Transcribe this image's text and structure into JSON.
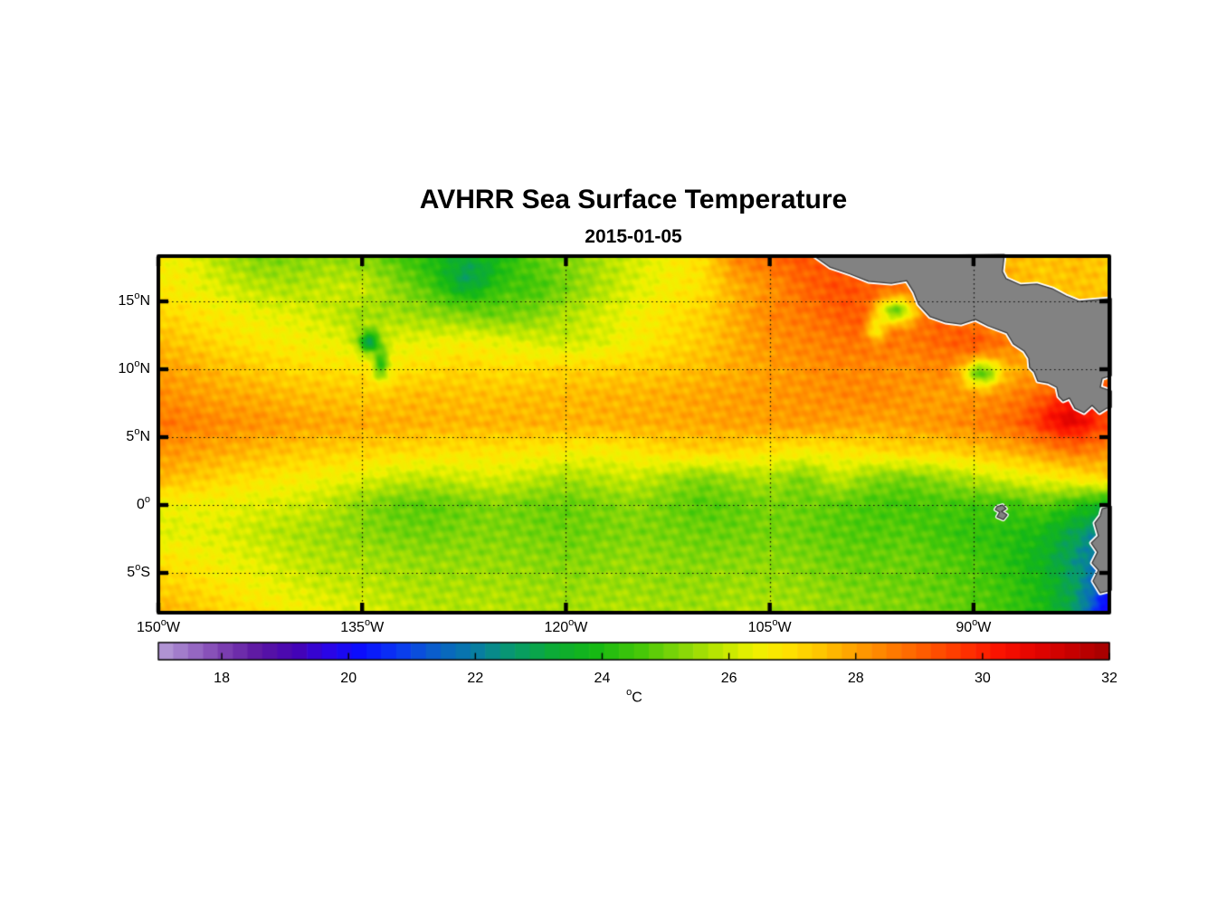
{
  "figure": {
    "title": "AVHRR Sea Surface Temperature",
    "subtitle": "2015-01-05",
    "background_color": "#ffffff",
    "frame_color": "#000000"
  },
  "map": {
    "deg_symbol": "o",
    "land_color": "#828282",
    "land_edge_color": "#3a3a3a",
    "coast_halo_color": "#ffffff",
    "grid_style": "dotted",
    "lat_ticks": [
      {
        "value": 15,
        "label": "15",
        "suffix": "N"
      },
      {
        "value": 10,
        "label": "10",
        "suffix": "N"
      },
      {
        "value": 5,
        "label": "5",
        "suffix": "N"
      },
      {
        "value": 0,
        "label": "0",
        "suffix": ""
      },
      {
        "value": -5,
        "label": "5",
        "suffix": "S"
      }
    ],
    "lon_ticks": [
      {
        "value": -150,
        "label": "150",
        "suffix": "W"
      },
      {
        "value": -135,
        "label": "135",
        "suffix": "W"
      },
      {
        "value": -120,
        "label": "120",
        "suffix": "W"
      },
      {
        "value": -105,
        "label": "105",
        "suffix": "W"
      },
      {
        "value": -90,
        "label": "90",
        "suffix": "W"
      }
    ]
  },
  "colorbar": {
    "min": 17,
    "max": 32,
    "steps": 64,
    "ticks": [
      18,
      20,
      22,
      24,
      26,
      28,
      30,
      32
    ],
    "deg_symbol": "o",
    "unit": "C",
    "stops": [
      [
        17.0,
        "#b79fd7"
      ],
      [
        17.5,
        "#9a70c6"
      ],
      [
        18.0,
        "#7e41b2"
      ],
      [
        18.6,
        "#5c16a2"
      ],
      [
        19.2,
        "#4503b6"
      ],
      [
        19.7,
        "#2a06e8"
      ],
      [
        20.2,
        "#0a0eff"
      ],
      [
        20.8,
        "#0a3af2"
      ],
      [
        21.4,
        "#0a62c8"
      ],
      [
        22.0,
        "#087da4"
      ],
      [
        22.6,
        "#089b6c"
      ],
      [
        23.2,
        "#0cab38"
      ],
      [
        23.9,
        "#16b914"
      ],
      [
        24.6,
        "#46c808"
      ],
      [
        25.3,
        "#8ad808"
      ],
      [
        25.9,
        "#c2e800"
      ],
      [
        26.4,
        "#eef200"
      ],
      [
        26.9,
        "#ffe400"
      ],
      [
        27.4,
        "#ffc800"
      ],
      [
        28.0,
        "#ffa000"
      ],
      [
        28.6,
        "#ff7a00"
      ],
      [
        29.2,
        "#ff5400"
      ],
      [
        29.8,
        "#ff2e00"
      ],
      [
        30.3,
        "#fa1000"
      ],
      [
        30.9,
        "#e10400"
      ],
      [
        31.5,
        "#c20000"
      ],
      [
        32.0,
        "#a30000"
      ]
    ]
  },
  "chart_data": {
    "type": "heatmap",
    "title": "AVHRR Sea Surface Temperature",
    "date": "2015-01-05",
    "units": "degC",
    "value_range": [
      17,
      32
    ],
    "lon_range": [
      -150,
      -80
    ],
    "lat_range": [
      -7.93,
      18.333
    ],
    "grid_lons_start": -150,
    "grid_lons_step": 2.5,
    "grid_lats": [
      18.33,
      16,
      14,
      12,
      10,
      8,
      6,
      4,
      2,
      0,
      -2,
      -4,
      -6,
      -8
    ],
    "sst": [
      [
        26.6,
        26.3,
        25.6,
        25.1,
        25.2,
        25.4,
        25.2,
        24.7,
        24.0,
        23.8,
        24.0,
        24.8,
        25.2,
        25.6,
        26.1,
        26.5,
        27.0,
        28.4,
        28.9,
        29.2,
        29.0,
        28.8,
        28.6,
        28.3,
        28.0,
        27.6,
        27.4,
        27.6,
        27.2
      ],
      [
        26.8,
        26.5,
        26.1,
        25.8,
        25.7,
        25.9,
        26.0,
        25.3,
        24.7,
        23.9,
        24.6,
        24.5,
        25.1,
        25.7,
        26.2,
        26.6,
        26.9,
        27.8,
        28.2,
        28.9,
        29.3,
        29.1,
        28.8,
        28.5,
        28.2,
        27.8,
        27.4,
        27.5,
        27.4
      ],
      [
        27.2,
        26.9,
        26.7,
        26.4,
        26.3,
        26.0,
        25.5,
        25.6,
        25.4,
        25.2,
        25.0,
        25.2,
        25.7,
        26.1,
        26.5,
        26.9,
        27.2,
        27.8,
        28.4,
        28.6,
        29.0,
        29.4,
        28.8,
        29.0,
        28.6,
        28.0,
        27.6,
        27.6,
        27.5
      ],
      [
        27.6,
        27.3,
        27.0,
        26.8,
        26.6,
        26.4,
        26.2,
        26.3,
        26.4,
        26.6,
        26.4,
        26.2,
        26.0,
        26.2,
        26.6,
        27.0,
        27.3,
        27.8,
        28.2,
        28.4,
        28.6,
        28.8,
        28.6,
        28.9,
        29.2,
        28.6,
        27.9,
        27.7,
        27.6
      ],
      [
        28.0,
        27.8,
        27.5,
        27.3,
        27.1,
        27.0,
        26.9,
        26.9,
        27.0,
        27.2,
        27.0,
        27.1,
        27.2,
        27.2,
        27.3,
        27.4,
        27.6,
        27.8,
        28.0,
        28.2,
        28.4,
        28.3,
        28.2,
        28.4,
        28.1,
        27.8,
        28.0,
        28.6,
        28.4
      ],
      [
        28.3,
        28.1,
        27.9,
        27.8,
        27.6,
        27.5,
        27.4,
        27.5,
        27.6,
        27.5,
        27.5,
        27.6,
        27.6,
        27.7,
        27.7,
        27.8,
        27.9,
        28.0,
        28.1,
        28.2,
        28.3,
        28.4,
        28.2,
        28.0,
        28.2,
        28.4,
        28.8,
        29.2,
        29.2
      ],
      [
        28.7,
        28.5,
        28.3,
        28.2,
        28.0,
        27.9,
        27.8,
        27.8,
        27.7,
        27.7,
        27.7,
        27.7,
        27.7,
        27.7,
        27.8,
        27.8,
        27.9,
        28.0,
        28.0,
        28.1,
        28.0,
        27.9,
        28.0,
        28.2,
        28.4,
        28.8,
        29.3,
        29.6,
        29.2
      ],
      [
        28.2,
        28.0,
        27.8,
        27.6,
        27.4,
        27.3,
        27.2,
        27.1,
        27.0,
        26.9,
        26.9,
        26.8,
        26.7,
        26.6,
        26.8,
        27.1,
        27.2,
        27.1,
        26.9,
        26.7,
        26.8,
        27.0,
        27.2,
        27.2,
        27.4,
        27.7,
        28.1,
        28.6,
        28.3
      ],
      [
        27.7,
        27.4,
        27.1,
        26.9,
        26.7,
        26.5,
        26.3,
        26.0,
        25.9,
        26.1,
        26.2,
        25.9,
        25.6,
        25.8,
        26.0,
        25.6,
        25.2,
        25.5,
        25.7,
        25.1,
        26.0,
        25.3,
        25.1,
        25.4,
        25.8,
        26.2,
        26.5,
        26.8,
        27.2
      ],
      [
        26.4,
        26.5,
        26.4,
        26.2,
        26.1,
        25.8,
        25.3,
        24.9,
        24.8,
        25.0,
        25.2,
        25.0,
        24.9,
        25.1,
        25.3,
        25.0,
        24.7,
        24.9,
        25.1,
        25.0,
        24.8,
        24.6,
        24.5,
        24.6,
        24.5,
        24.4,
        24.8,
        24.2,
        23.5
      ],
      [
        26.2,
        26.3,
        26.2,
        25.9,
        25.7,
        25.5,
        25.3,
        25.1,
        25.0,
        25.2,
        25.2,
        25.1,
        25.0,
        25.1,
        25.2,
        25.1,
        25.0,
        25.0,
        25.1,
        25.0,
        24.8,
        24.7,
        24.8,
        24.5,
        24.3,
        24.2,
        23.9,
        22.9,
        21.8
      ],
      [
        26.9,
        26.7,
        26.4,
        26.2,
        25.9,
        25.7,
        25.6,
        25.5,
        25.4,
        25.4,
        25.4,
        25.3,
        25.2,
        25.3,
        25.4,
        25.3,
        25.2,
        25.3,
        25.3,
        25.2,
        25.0,
        24.9,
        25.0,
        24.8,
        24.6,
        24.2,
        23.6,
        22.5,
        21.2
      ],
      [
        27.3,
        27.1,
        26.8,
        26.5,
        26.2,
        26.0,
        25.9,
        25.7,
        25.6,
        25.6,
        25.6,
        25.5,
        25.4,
        25.5,
        25.5,
        25.4,
        25.4,
        25.5,
        25.5,
        25.4,
        25.2,
        25.1,
        25.0,
        24.9,
        24.7,
        24.4,
        23.9,
        22.7,
        20.9
      ],
      [
        27.8,
        27.5,
        27.2,
        26.9,
        26.6,
        26.4,
        26.2,
        26.0,
        25.8,
        25.8,
        25.8,
        25.7,
        25.6,
        25.7,
        25.7,
        25.6,
        25.6,
        25.7,
        25.7,
        25.6,
        25.4,
        25.3,
        25.2,
        25.0,
        24.8,
        24.5,
        24.0,
        22.8,
        20.6
      ]
    ],
    "anomaly_blobs": [
      {
        "lon": -95.8,
        "lat": 14.3,
        "rlon": 1.5,
        "rlat": 1.0,
        "dt": -3.8
      },
      {
        "lon": -97.2,
        "lat": 12.9,
        "rlon": 0.7,
        "rlat": 0.9,
        "dt": -2.2
      },
      {
        "lon": -89.4,
        "lat": 9.7,
        "rlon": 1.3,
        "rlat": 1.0,
        "dt": -3.2
      },
      {
        "lon": -134.5,
        "lat": 12.0,
        "rlon": 0.8,
        "rlat": 0.8,
        "dt": -3.2
      },
      {
        "lon": -133.6,
        "lat": 10.3,
        "rlon": 0.6,
        "rlat": 1.2,
        "dt": -2.4
      },
      {
        "lon": -127.0,
        "lat": 16.9,
        "rlon": 2.0,
        "rlat": 1.4,
        "dt": -1.0
      },
      {
        "lon": -83.0,
        "lat": 6.5,
        "rlon": 2.2,
        "rlat": 1.6,
        "dt": 1.3
      },
      {
        "lon": -80.0,
        "lat": -7.8,
        "rlon": 1.6,
        "rlat": 1.5,
        "dt": -1.0
      }
    ],
    "texture_noise": {
      "a1": 0.22,
      "f1": [
        2.7,
        1.9,
        3.8,
        1.3
      ],
      "a2": 0.18,
      "f2": [
        5.3,
        2.2,
        6.1,
        3.7
      ]
    },
    "land": {
      "central_america": [
        [
          -101.71,
          18.33
        ],
        [
          -100.58,
          17.53
        ],
        [
          -99.05,
          17.0
        ],
        [
          -97.72,
          16.47
        ],
        [
          -96.05,
          16.33
        ],
        [
          -94.92,
          16.53
        ],
        [
          -94.39,
          15.67
        ],
        [
          -94.05,
          14.8
        ],
        [
          -93.19,
          13.87
        ],
        [
          -92.06,
          13.47
        ],
        [
          -90.93,
          13.33
        ],
        [
          -89.86,
          13.67
        ],
        [
          -88.93,
          13.2
        ],
        [
          -87.53,
          12.67
        ],
        [
          -87.06,
          11.87
        ],
        [
          -86.26,
          11.33
        ],
        [
          -85.93,
          10.8
        ],
        [
          -85.87,
          10.13
        ],
        [
          -85.53,
          9.8
        ],
        [
          -85.27,
          9.13
        ],
        [
          -84.53,
          9.0
        ],
        [
          -83.87,
          8.67
        ],
        [
          -83.73,
          8.0
        ],
        [
          -83.4,
          7.67
        ],
        [
          -82.93,
          7.87
        ],
        [
          -82.53,
          7.13
        ],
        [
          -81.87,
          6.8
        ],
        [
          -81.27,
          7.33
        ],
        [
          -80.73,
          6.8
        ],
        [
          -80.2,
          7.13
        ],
        [
          -79.85,
          7.2
        ],
        [
          -79.85,
          8.4
        ],
        [
          -80.67,
          8.67
        ],
        [
          -80.53,
          9.33
        ],
        [
          -79.85,
          9.53
        ],
        [
          -79.85,
          15.2
        ],
        [
          -82.2,
          15.0
        ],
        [
          -83.2,
          15.4
        ],
        [
          -84.2,
          15.93
        ],
        [
          -85.33,
          16.27
        ],
        [
          -86.53,
          16.2
        ],
        [
          -87.6,
          16.67
        ],
        [
          -87.87,
          17.2
        ],
        [
          -87.73,
          18.45
        ]
      ],
      "south_america": [
        [
          -79.85,
          -0.1
        ],
        [
          -80.53,
          -0.27
        ],
        [
          -80.67,
          -0.8
        ],
        [
          -81.07,
          -1.33
        ],
        [
          -80.8,
          -2.27
        ],
        [
          -81.33,
          -2.8
        ],
        [
          -80.87,
          -3.47
        ],
        [
          -81.27,
          -4.27
        ],
        [
          -80.8,
          -4.8
        ],
        [
          -81.2,
          -5.6
        ],
        [
          -80.67,
          -6.47
        ],
        [
          -79.85,
          -6.27
        ]
      ],
      "galapagos": [
        [
          -88.27,
          -0.13
        ],
        [
          -87.87,
          0.0
        ],
        [
          -87.6,
          -0.27
        ],
        [
          -87.93,
          -0.47
        ],
        [
          -87.53,
          -0.73
        ],
        [
          -87.8,
          -1.07
        ],
        [
          -88.27,
          -0.87
        ],
        [
          -88.07,
          -0.53
        ],
        [
          -88.4,
          -0.33
        ]
      ]
    }
  }
}
